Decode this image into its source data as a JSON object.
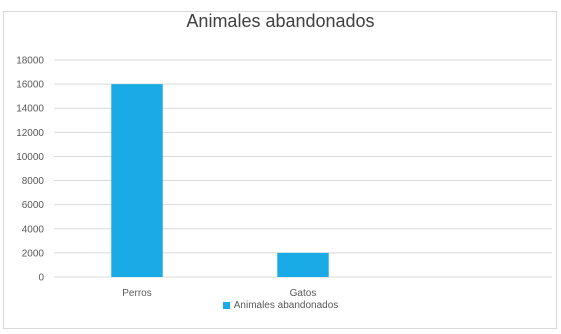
{
  "chart_data": {
    "type": "bar",
    "title": "Animales abandonados",
    "categories": [
      "Perros",
      "Gatos",
      ""
    ],
    "series": [
      {
        "name": "Animales abandonados",
        "values": [
          16000,
          2000,
          null
        ],
        "color": "#1aabe6"
      }
    ],
    "ylim": [
      0,
      18000
    ],
    "yticks": [
      "0",
      "2000",
      "4000",
      "6000",
      "8000",
      "10000",
      "12000",
      "14000",
      "16000",
      "18000"
    ],
    "grid": true,
    "legend_position": "bottom"
  }
}
